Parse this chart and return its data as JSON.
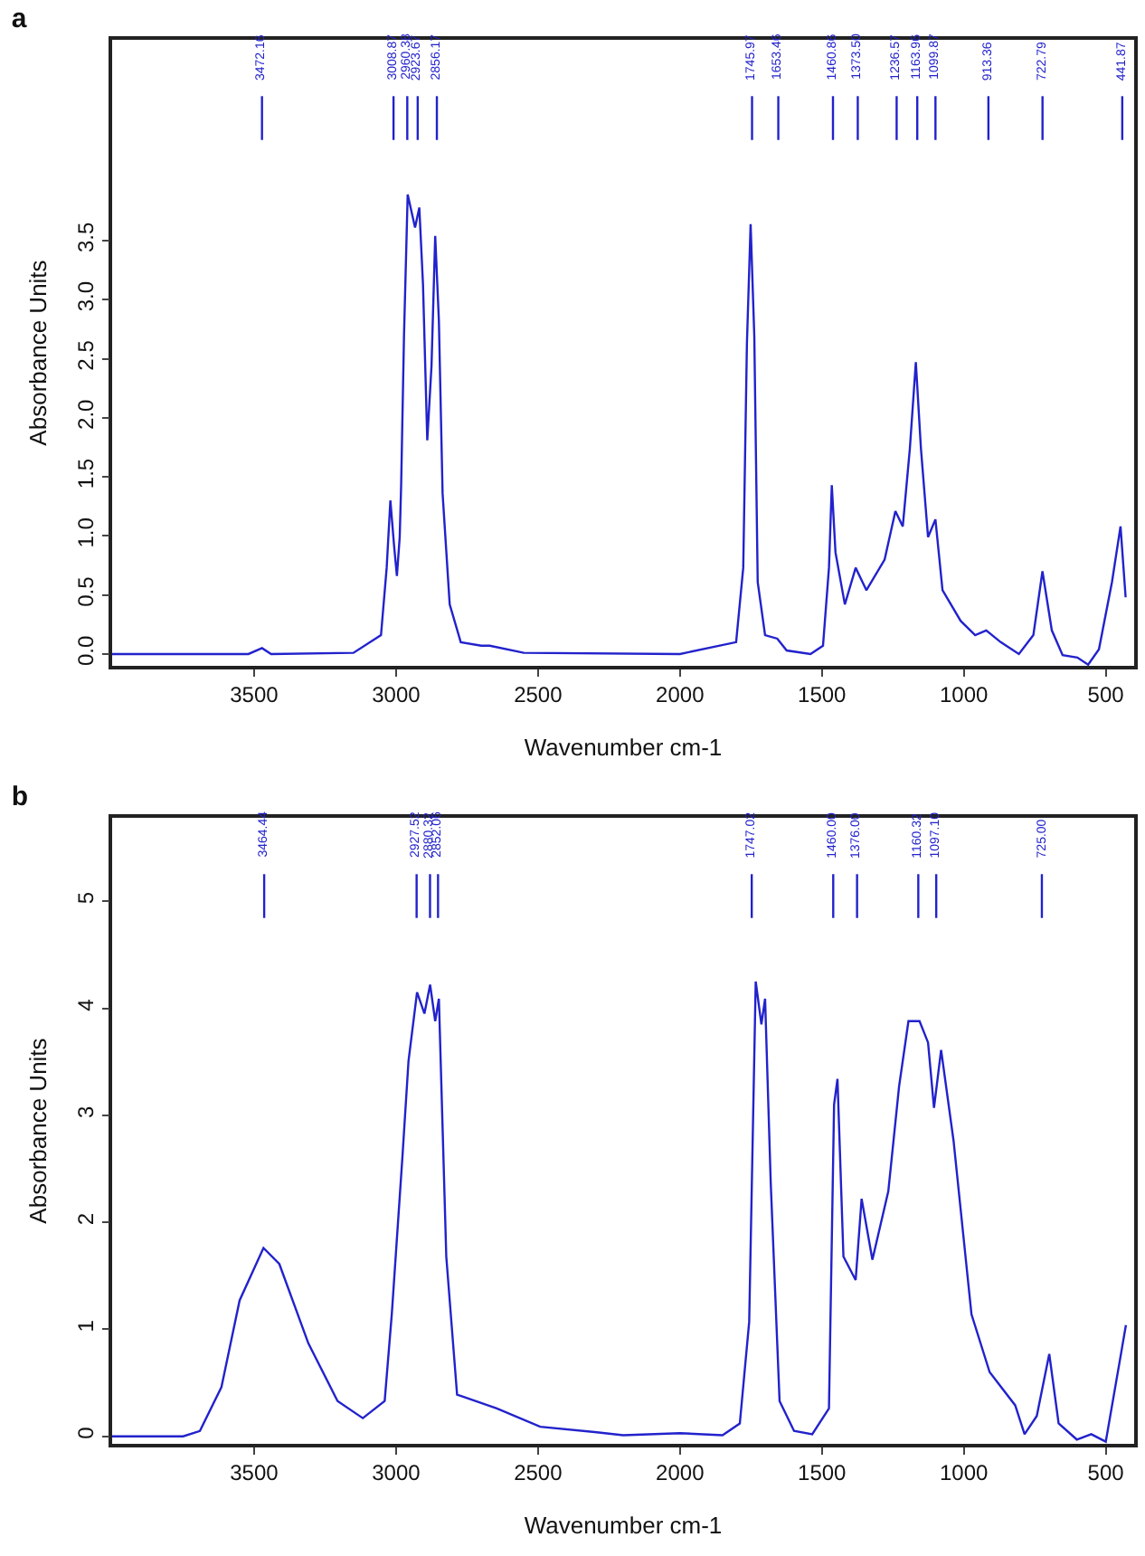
{
  "chart_data": [
    {
      "type": "line",
      "title": "a",
      "xlabel": "Wavenumber cm-1",
      "ylabel": "Absorbance Units",
      "x": [
        4000,
        3520,
        3472,
        3440,
        3150,
        3053,
        3033,
        3020,
        3007,
        2997,
        2987,
        2982,
        2972,
        2959,
        2933,
        2918,
        2905,
        2890,
        2875,
        2862,
        2849,
        2836,
        2811,
        2772,
        2700,
        2670,
        2550,
        2000,
        1802,
        1777,
        1764,
        1751,
        1738,
        1726,
        1700,
        1657,
        1624,
        1540,
        1496,
        1475,
        1465,
        1452,
        1419,
        1381,
        1343,
        1279,
        1241,
        1215,
        1190,
        1169,
        1151,
        1126,
        1100,
        1075,
        1011,
        960,
        921,
        870,
        806,
        755,
        723,
        690,
        652,
        600,
        562,
        524,
        478,
        448,
        430
      ],
      "series": [
        {
          "color": "#2222cc",
          "values": [
            0,
            0,
            0.05,
            0,
            0.01,
            0.16,
            0.73,
            1.3,
            0.92,
            0.66,
            0.99,
            1.43,
            2.69,
            3.89,
            3.61,
            3.78,
            3.13,
            1.81,
            2.44,
            3.54,
            2.82,
            1.36,
            0.42,
            0.1,
            0.07,
            0.07,
            0.01,
            0,
            0.1,
            0.73,
            2.63,
            3.64,
            2.69,
            0.61,
            0.16,
            0.13,
            0.03,
            0,
            0.07,
            0.73,
            1.43,
            0.86,
            0.42,
            0.73,
            0.54,
            0.8,
            1.21,
            1.08,
            1.74,
            2.47,
            1.74,
            0.99,
            1.14,
            0.54,
            0.28,
            0.16,
            0.2,
            0.1,
            0,
            0.16,
            0.7,
            0.2,
            -0.01,
            -0.03,
            -0.09,
            0.04,
            0.61,
            1.08,
            0.48
          ]
        }
      ],
      "xlim": [
        4000,
        400
      ],
      "xticks": [
        3500,
        3000,
        2500,
        2000,
        1500,
        1000,
        500
      ],
      "ylim": [
        -0.1,
        5.2
      ],
      "yticks": [
        {
          "value": 0,
          "label": "0.0"
        },
        0.5,
        {
          "value": 1,
          "label": "1.0"
        },
        1.5,
        {
          "value": 2,
          "label": "2.0"
        },
        2.5,
        {
          "value": 3,
          "label": "3.0"
        },
        3.5
      ],
      "ref_lines": [
        {
          "axis": "x",
          "value": 3472.16,
          "label": "3472.16",
          "color": "#2222cc"
        },
        {
          "axis": "x",
          "value": 3008.87,
          "label": "3008.87",
          "color": "#2222cc"
        },
        {
          "axis": "x",
          "value": 2960.38,
          "label": "2960.38",
          "color": "#2222cc"
        },
        {
          "axis": "x",
          "value": 2923.67,
          "label": "2923.67",
          "color": "#2222cc"
        },
        {
          "axis": "x",
          "value": 2856.17,
          "label": "2856.17",
          "color": "#2222cc"
        },
        {
          "axis": "x",
          "value": 1745.97,
          "label": "1745.97",
          "color": "#2222cc"
        },
        {
          "axis": "x",
          "value": 1653.46,
          "label": "1653.46",
          "color": "#2222cc"
        },
        {
          "axis": "x",
          "value": 1460.86,
          "label": "1460.86",
          "color": "#2222cc"
        },
        {
          "axis": "x",
          "value": 1373.5,
          "label": "1373.50",
          "color": "#2222cc"
        },
        {
          "axis": "x",
          "value": 1236.57,
          "label": "1236.57",
          "color": "#2222cc"
        },
        {
          "axis": "x",
          "value": 1163.96,
          "label": "1163.96",
          "color": "#2222cc"
        },
        {
          "axis": "x",
          "value": 1099.87,
          "label": "1099.87",
          "color": "#2222cc"
        },
        {
          "axis": "x",
          "value": 913.36,
          "label": "913.36",
          "color": "#2222cc"
        },
        {
          "axis": "x",
          "value": 722.79,
          "label": "722.79",
          "color": "#2222cc"
        },
        {
          "axis": "x",
          "value": 441.87,
          "label": "441.87",
          "color": "#2222cc"
        }
      ]
    },
    {
      "type": "line",
      "title": "b",
      "xlabel": "Wavenumber cm-1",
      "ylabel": "Absorbance Units",
      "x": [
        4000,
        3750,
        3691,
        3615,
        3551,
        3467,
        3411,
        3309,
        3206,
        3117,
        3040,
        3015,
        2977,
        2956,
        2926,
        2900,
        2880,
        2862,
        2849,
        2823,
        2785,
        2645,
        2492,
        2300,
        2200,
        2000,
        1850,
        1789,
        1756,
        1733,
        1713,
        1700,
        1680,
        1649,
        1598,
        1534,
        1475,
        1457,
        1445,
        1424,
        1381,
        1360,
        1322,
        1266,
        1228,
        1195,
        1156,
        1126,
        1105,
        1080,
        1036,
        973,
        909,
        819,
        786,
        743,
        699,
        666,
        602,
        551,
        500,
        449,
        429
      ],
      "series": [
        {
          "color": "#2222cc",
          "values": [
            0,
            0,
            0.05,
            0.46,
            1.27,
            1.76,
            1.61,
            0.87,
            0.33,
            0.17,
            0.33,
            1.14,
            2.63,
            3.51,
            4.15,
            3.95,
            4.22,
            3.88,
            4.09,
            1.68,
            0.39,
            0.26,
            0.09,
            0.04,
            0.01,
            0.03,
            0.01,
            0.12,
            1.07,
            4.25,
            3.85,
            4.09,
            2.36,
            0.33,
            0.05,
            0.02,
            0.26,
            3.1,
            3.34,
            1.68,
            1.46,
            2.22,
            1.65,
            2.29,
            3.27,
            3.88,
            3.88,
            3.68,
            3.07,
            3.61,
            2.76,
            1.14,
            0.6,
            0.29,
            0.02,
            0.19,
            0.77,
            0.12,
            -0.03,
            0.02,
            -0.05,
            0.73,
            1.04
          ]
        }
      ],
      "xlim": [
        4000,
        400
      ],
      "xticks": [
        3500,
        3000,
        2500,
        2000,
        1500,
        1000,
        500
      ],
      "ylim": [
        -0.07,
        5.78
      ],
      "yticks": [
        0,
        1,
        2,
        3,
        4,
        5
      ],
      "ref_lines": [
        {
          "axis": "x",
          "value": 3464.44,
          "label": "3464.44",
          "color": "#2222cc"
        },
        {
          "axis": "x",
          "value": 2927.52,
          "label": "2927.52",
          "color": "#2222cc"
        },
        {
          "axis": "x",
          "value": 2880.32,
          "label": "2880.32",
          "color": "#2222cc"
        },
        {
          "axis": "x",
          "value": 2852.06,
          "label": "2852.06",
          "color": "#2222cc"
        },
        {
          "axis": "x",
          "value": 1747.02,
          "label": "1747.02",
          "color": "#2222cc"
        },
        {
          "axis": "x",
          "value": 1460.0,
          "label": "1460.00",
          "color": "#2222cc"
        },
        {
          "axis": "x",
          "value": 1376.0,
          "label": "1376.00",
          "color": "#2222cc"
        },
        {
          "axis": "x",
          "value": 1160.32,
          "label": "1160.32",
          "color": "#2222cc"
        },
        {
          "axis": "x",
          "value": 1097.1,
          "label": "1097.10",
          "color": "#2222cc"
        },
        {
          "axis": "x",
          "value": 725.0,
          "label": "725.00",
          "color": "#2222cc"
        }
      ]
    }
  ]
}
